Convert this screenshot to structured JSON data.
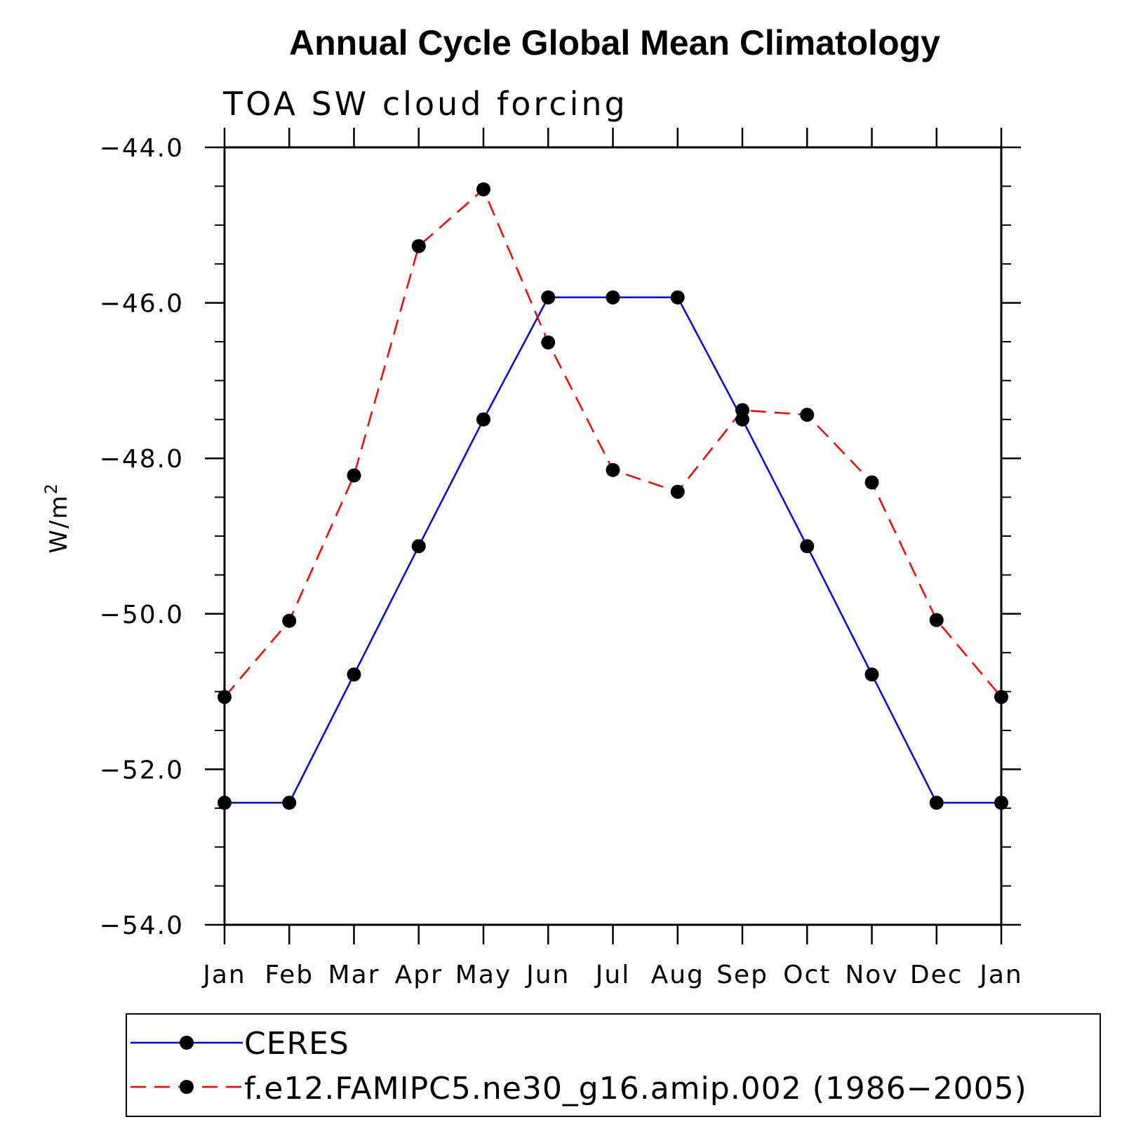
{
  "chart_data": {
    "type": "line",
    "title": "Annual Cycle Global Mean Climatology",
    "subtitle": "TOA SW cloud forcing",
    "ylabel": "W/m",
    "ylabel_superscript": "2",
    "xlabel": "",
    "categories": [
      "Jan",
      "Feb",
      "Mar",
      "Apr",
      "May",
      "Jun",
      "Jul",
      "Aug",
      "Sep",
      "Oct",
      "Nov",
      "Dec",
      "Jan"
    ],
    "ylim": [
      -54.0,
      -44.0
    ],
    "y_ticks": [
      -54.0,
      -52.0,
      -50.0,
      -48.0,
      -46.0,
      -44.0
    ],
    "y_tick_labels": [
      "−54.0",
      "−52.0",
      "−50.0",
      "−48.0",
      "−46.0",
      "−44.0"
    ],
    "y_minor_step": 0.5,
    "grid": false,
    "legend_position": "bottom",
    "series": [
      {
        "name": "CERES",
        "color": "#0000ff",
        "line_style": "solid",
        "marker_color": "#000000",
        "values": [
          -52.43,
          -52.43,
          -50.78,
          -49.13,
          -47.5,
          -45.93,
          -45.93,
          -45.93,
          -47.5,
          -49.13,
          -50.78,
          -52.43,
          -52.43
        ]
      },
      {
        "name": "f.e12.FAMIPC5.ne30_g16.amip.002 (1986−2005)",
        "color": "#ff0000",
        "line_style": "dashed",
        "marker_color": "#000000",
        "values": [
          -51.07,
          -50.09,
          -48.22,
          -45.27,
          -44.54,
          -46.51,
          -48.15,
          -48.43,
          -47.38,
          -47.44,
          -48.31,
          -50.08,
          -51.07
        ]
      }
    ]
  }
}
